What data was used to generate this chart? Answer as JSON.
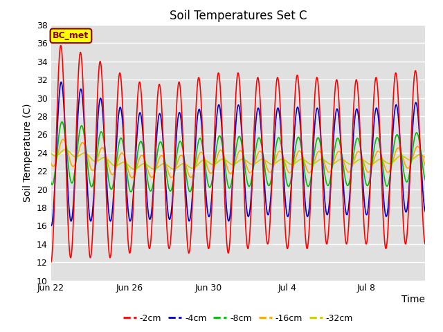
{
  "title": "Soil Temperatures Set C",
  "xlabel": "Time",
  "ylabel": "Soil Temperature (C)",
  "ylim": [
    10,
    38
  ],
  "yticks": [
    10,
    12,
    14,
    16,
    18,
    20,
    22,
    24,
    26,
    28,
    30,
    32,
    34,
    36,
    38
  ],
  "xtick_positions": [
    0,
    4,
    8,
    12,
    16
  ],
  "xtick_labels": [
    "Jun 22",
    "Jun 26",
    "Jun 30",
    "Jul 4",
    "Jul 8"
  ],
  "xlabel_extra": "Jul 8",
  "annotation_text": "BC_met",
  "annotation_bg": "#FFFF00",
  "annotation_border": "#8B0000",
  "colors": {
    "-2cm": "#FF0000",
    "-4cm": "#0000CC",
    "-8cm": "#00BB00",
    "-16cm": "#FFA500",
    "-32cm": "#CCCC00"
  },
  "bg_color": "#E0E0E0",
  "fig_bg": "#FFFFFF",
  "grid_color": "#FFFFFF",
  "line_width": 1.2,
  "duration_days": 19.0,
  "n_points": 2000,
  "mean_profile": [
    24.0,
    24.0,
    23.5,
    23.0,
    22.5,
    22.5,
    22.5,
    22.5,
    23.0,
    23.0,
    23.0,
    23.0,
    23.0,
    23.0,
    23.0,
    23.0,
    23.0,
    23.0,
    23.5
  ],
  "amp2_profile": [
    12.0,
    11.5,
    11.0,
    10.5,
    9.5,
    9.0,
    9.0,
    9.5,
    9.5,
    10.0,
    9.5,
    9.0,
    9.5,
    9.5,
    9.0,
    9.0,
    9.0,
    9.5,
    9.5
  ],
  "amp4_profile": [
    8.0,
    7.5,
    7.0,
    6.5,
    6.0,
    5.8,
    5.8,
    6.0,
    6.0,
    6.5,
    6.0,
    5.8,
    6.0,
    6.0,
    5.8,
    5.8,
    5.8,
    6.0,
    6.0
  ],
  "amp8_profile": [
    3.5,
    3.3,
    3.2,
    3.0,
    2.8,
    2.7,
    2.7,
    2.8,
    2.8,
    2.9,
    2.7,
    2.6,
    2.7,
    2.7,
    2.6,
    2.6,
    2.6,
    2.7,
    2.7
  ],
  "amp16_profile": [
    1.5,
    1.45,
    1.4,
    1.35,
    1.25,
    1.2,
    1.2,
    1.25,
    1.25,
    1.3,
    1.2,
    1.15,
    1.2,
    1.2,
    1.15,
    1.15,
    1.15,
    1.2,
    1.2
  ],
  "amp32_profile": [
    0.35,
    0.34,
    0.33,
    0.32,
    0.3,
    0.29,
    0.29,
    0.3,
    0.3,
    0.31,
    0.29,
    0.28,
    0.29,
    0.29,
    0.28,
    0.28,
    0.28,
    0.29,
    0.29
  ],
  "phase2": 0.0,
  "phase4": 0.13,
  "phase8": 0.38,
  "phase16": 0.72,
  "phase32": 1.45
}
